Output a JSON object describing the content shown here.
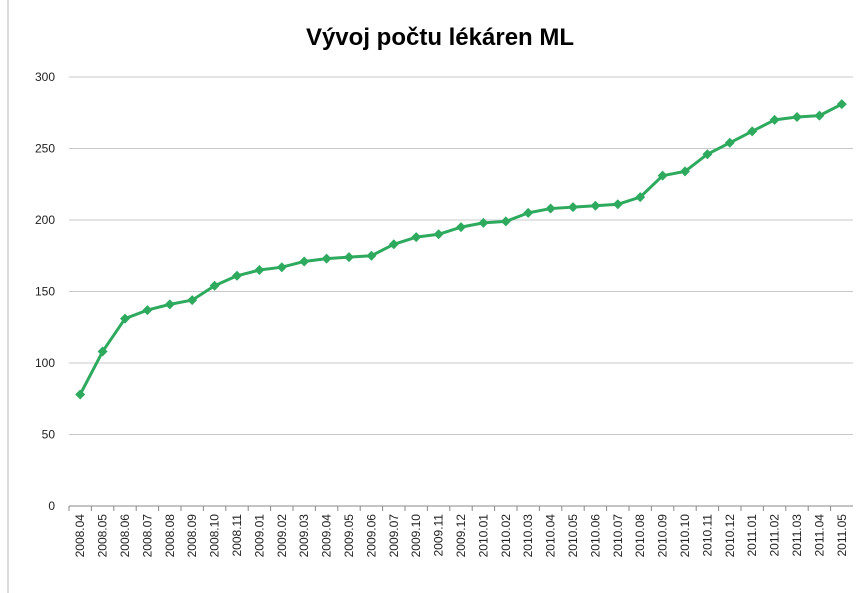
{
  "chart_data": {
    "type": "line",
    "title": "Vývoj počtu lékáren ML",
    "categories": [
      "2008.04",
      "2008.05",
      "2008.06",
      "2008.07",
      "2008.08",
      "2008.09",
      "2008.10",
      "2008.11",
      "2009.01",
      "2009.02",
      "2009.03",
      "2009.04",
      "2009.05",
      "2009.06",
      "2009.07",
      "2009.10",
      "2009.11",
      "2009.12",
      "2010.01",
      "2010.02",
      "2010.03",
      "2010.04",
      "2010.05",
      "2010.06",
      "2010.07",
      "2010.08",
      "2010.09",
      "2010.10",
      "2010.11",
      "2010.12",
      "2011.01",
      "2011.02",
      "2011.03",
      "2011.04",
      "2011.05"
    ],
    "values": [
      78,
      108,
      131,
      137,
      141,
      144,
      154,
      161,
      165,
      167,
      171,
      173,
      174,
      175,
      183,
      188,
      190,
      195,
      198,
      199,
      205,
      208,
      209,
      210,
      211,
      216,
      231,
      234,
      246,
      254,
      262,
      270,
      272,
      273,
      281
    ],
    "color": "#2eaa5e",
    "ylim": [
      0,
      300
    ],
    "yticks": [
      0,
      50,
      100,
      150,
      200,
      250,
      300
    ],
    "grid": true
  }
}
